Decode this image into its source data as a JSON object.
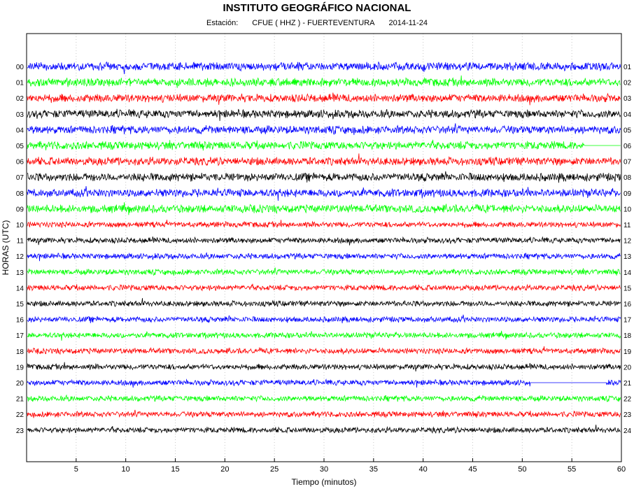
{
  "header": {
    "title": "INSTITUTO GEOGRÁFICO NACIONAL",
    "station_label": "Estación:",
    "station": "CFUE ( HHZ ) - FUERTEVENTURA",
    "date": "2014-11-24"
  },
  "chart_data": {
    "type": "line",
    "title": "INSTITUTO GEOGRÁFICO NACIONAL",
    "subtitle": "Estación:  CFUE ( HHZ ) - FUERTEVENTURA   2014-11-24",
    "xlabel": "Tiempo (minutos)",
    "ylabel": "HORAS (UTC)",
    "xlim": [
      0,
      60
    ],
    "x_ticks": [
      "5",
      "10",
      "15",
      "20",
      "25",
      "30",
      "35",
      "40",
      "45",
      "50",
      "55",
      "60"
    ],
    "x_tick_values": [
      5,
      10,
      15,
      20,
      25,
      30,
      35,
      40,
      45,
      50,
      55,
      60
    ],
    "grid": true,
    "colors": [
      "#0000ff",
      "#00ff00",
      "#ff0000",
      "#000000"
    ],
    "hours_left": [
      "00",
      "01",
      "02",
      "03",
      "04",
      "05",
      "06",
      "07",
      "08",
      "09",
      "10",
      "11",
      "12",
      "13",
      "14",
      "15",
      "16",
      "17",
      "18",
      "19",
      "20",
      "21",
      "22",
      "23"
    ],
    "hours_right": [
      "01",
      "02",
      "03",
      "04",
      "05",
      "06",
      "07",
      "08",
      "09",
      "10",
      "11",
      "12",
      "13",
      "14",
      "15",
      "16",
      "17",
      "18",
      "19",
      "20",
      "21",
      "22",
      "23",
      "24"
    ],
    "gaps": [
      {
        "hour": "05",
        "from_minute": 56.3,
        "to_minute": 60
      },
      {
        "hour": "20",
        "from_minute": 50.8,
        "to_minute": 58.5
      }
    ]
  }
}
